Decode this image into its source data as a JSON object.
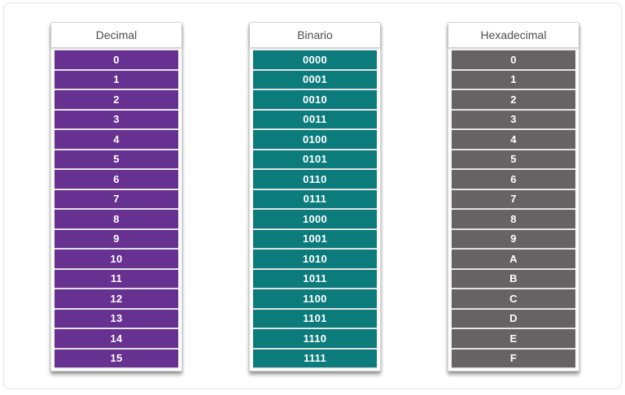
{
  "table": {
    "columns": [
      {
        "header": "Decimal",
        "row_color": "#663190",
        "rows": [
          "0",
          "1",
          "2",
          "3",
          "4",
          "5",
          "6",
          "7",
          "8",
          "9",
          "10",
          "11",
          "12",
          "13",
          "14",
          "15"
        ]
      },
      {
        "header": "Binario",
        "row_color": "#0c7b7c",
        "rows": [
          "0000",
          "0001",
          "0010",
          "0011",
          "0100",
          "0101",
          "0110",
          "0111",
          "1000",
          "1001",
          "1010",
          "1011",
          "1100",
          "1101",
          "1110",
          "1111"
        ]
      },
      {
        "header": "Hexadecimal",
        "row_color": "#676263",
        "rows": [
          "0",
          "1",
          "2",
          "3",
          "4",
          "5",
          "6",
          "7",
          "8",
          "9",
          "A",
          "B",
          "C",
          "D",
          "E",
          "F"
        ]
      }
    ]
  },
  "colors": {
    "frame_border": "#e5e5e5",
    "card_border": "#d7d7d7",
    "header_text": "#4d4d4d",
    "row_text": "#ffffff",
    "decimal_purple": "#663190",
    "binary_teal": "#0c7b7c",
    "hex_gray": "#676263"
  }
}
